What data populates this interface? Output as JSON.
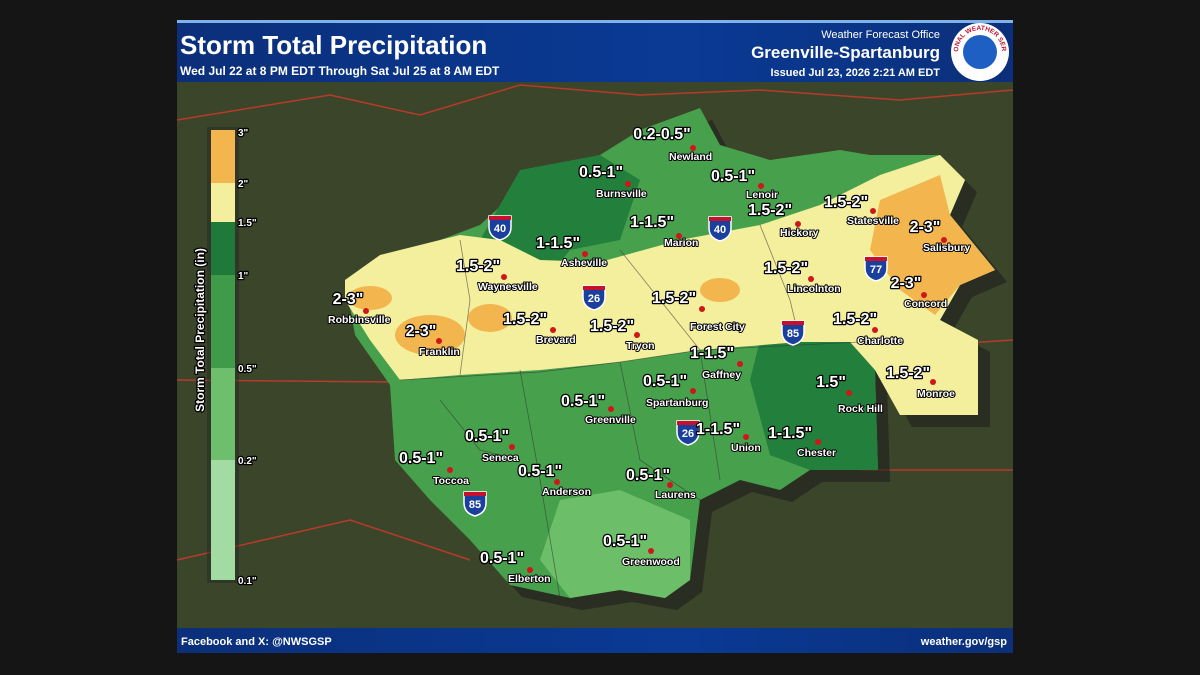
{
  "header": {
    "title": "Storm Total Precipitation",
    "subtitle": "Wed Jul 22 at 8 PM EDT Through Sat Jul 25 at 8 AM EDT",
    "office": "Weather Forecast Office",
    "office_name": "Greenville-Spartanburg",
    "issued": "Issued Jul 23, 2026 2:21 AM EDT",
    "logo_text": "NATIONAL WEATHER SERVICE"
  },
  "legend": {
    "title": "Storm Total Precipitation (in)",
    "ticks": [
      "3\"",
      "2\"",
      "1.5\"",
      "1\"",
      "0.5\"",
      "0.2\"",
      "0.1\""
    ]
  },
  "amounts": [
    "0.2-0.5\"",
    "0.5-1\"",
    "0.5-1\"",
    "1-1.5\"",
    "1-1.5\"",
    "1.5-2\"",
    "1.5-2\"",
    "2-3\"",
    "1.5-2\"",
    "2-3\"",
    "2-3\"",
    "1.5-2\"",
    "1.5-2\"",
    "1.5-2\"",
    "1.5-2\"",
    "2-3\"",
    "1.5-2\"",
    "1.5-2\"",
    "1-1.5\"",
    "0.5-1\"",
    "1.5\"",
    "0.5-1\"",
    "1-1.5\"",
    "1-1.5\"",
    "0.5-1\"",
    "0.5-1\"",
    "0.5-1\"",
    "0.5-1\"",
    "0.5-1\"",
    "0.5-1\""
  ],
  "cities": [
    "Newland",
    "Burnsville",
    "Lenoir",
    "Marion",
    "Hickory",
    "Statesville",
    "Salisbury",
    "Asheville",
    "Waynesville",
    "Lincolnton",
    "Concord",
    "Robbinsville",
    "Brevard",
    "Tryon",
    "Forest City",
    "Charlotte",
    "Franklin",
    "Gaffney",
    "Monroe",
    "Spartanburg",
    "Rock Hill",
    "Greenville",
    "Union",
    "Chester",
    "Seneca",
    "Toccoa",
    "Anderson",
    "Laurens",
    "Greenwood",
    "Elberton"
  ],
  "shields": [
    "40",
    "40",
    "26",
    "77",
    "85",
    "26",
    "85"
  ],
  "footer": {
    "left": "Facebook and X: @NWSGSP",
    "right": "weather.gov/gsp"
  }
}
